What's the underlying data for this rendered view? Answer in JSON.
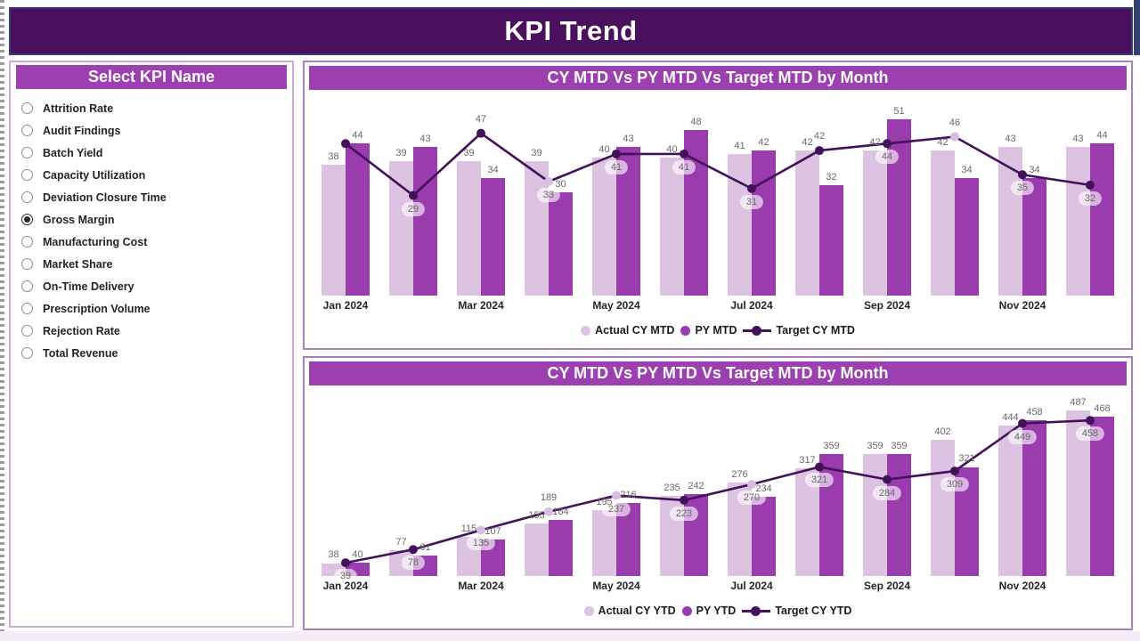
{
  "page": {
    "title": "KPI Trend"
  },
  "slicer": {
    "header": "Select KPI Name",
    "items": [
      {
        "label": "Attrition Rate",
        "selected": false
      },
      {
        "label": "Audit Findings",
        "selected": false
      },
      {
        "label": "Batch Yield",
        "selected": false
      },
      {
        "label": "Capacity Utilization",
        "selected": false
      },
      {
        "label": "Deviation Closure Time",
        "selected": false
      },
      {
        "label": "Gross Margin",
        "selected": true
      },
      {
        "label": "Manufacturing Cost",
        "selected": false
      },
      {
        "label": "Market Share",
        "selected": false
      },
      {
        "label": "On-Time Delivery",
        "selected": false
      },
      {
        "label": "Prescription Volume",
        "selected": false
      },
      {
        "label": "Rejection Rate",
        "selected": false
      },
      {
        "label": "Total Revenue",
        "selected": false
      }
    ]
  },
  "colors": {
    "header_bg": "#4A105E",
    "band_bg": "#9C3FB0",
    "bar_light": "#DCC3E1",
    "bar_dark": "#9A3BAE",
    "line": "#43105A",
    "marker_light": "#D9BCE2",
    "data_label": "#6B6669",
    "panel_border": "#A87EBC",
    "accent_navy": "#36406E"
  },
  "chart_data": [
    {
      "type": "bar+line",
      "title": "CY MTD Vs PY MTD Vs Target MTD by Month",
      "categories": [
        "Jan 2024",
        "Feb 2024",
        "Mar 2024",
        "Apr 2024",
        "May 2024",
        "Jun 2024",
        "Jul 2024",
        "Aug 2024",
        "Sep 2024",
        "Oct 2024",
        "Nov 2024",
        "Dec 2024"
      ],
      "x_ticks_shown": [
        "Jan 2024",
        "Mar 2024",
        "May 2024",
        "Jul 2024",
        "Sep 2024",
        "Nov 2024"
      ],
      "xlabel": "",
      "ylabel": "",
      "ylim": [
        0,
        58
      ],
      "grid": false,
      "legend_position": "bottom",
      "series": [
        {
          "name": "Actual CY MTD",
          "type": "bar",
          "color": "#DCC3E1",
          "values": [
            38,
            39,
            39,
            39,
            40,
            40,
            41,
            42,
            42,
            42,
            43,
            43
          ]
        },
        {
          "name": "PY MTD",
          "type": "bar",
          "color": "#9A3BAE",
          "values": [
            44,
            43,
            34,
            30,
            43,
            48,
            42,
            32,
            51,
            34,
            34,
            44
          ]
        },
        {
          "name": "Target CY MTD",
          "type": "line",
          "color": "#43105A",
          "values": [
            44,
            29,
            47,
            33,
            41,
            41,
            31,
            42,
            44,
            46,
            35,
            32
          ]
        }
      ],
      "target_label_below": [
        false,
        true,
        false,
        true,
        true,
        true,
        true,
        false,
        true,
        false,
        true,
        true
      ],
      "target_label_hidden": [
        true,
        false,
        false,
        false,
        false,
        false,
        false,
        false,
        false,
        false,
        false,
        false
      ],
      "target_marker_light": [
        false,
        false,
        false,
        true,
        false,
        false,
        false,
        false,
        false,
        true,
        false,
        false
      ]
    },
    {
      "type": "bar+line",
      "title": "CY MTD Vs PY MTD Vs Target MTD by Month",
      "categories": [
        "Jan 2024",
        "Feb 2024",
        "Mar 2024",
        "Apr 2024",
        "May 2024",
        "Jun 2024",
        "Jul 2024",
        "Aug 2024",
        "Sep 2024",
        "Oct 2024",
        "Nov 2024",
        "Dec 2024"
      ],
      "x_ticks_shown": [
        "Jan 2024",
        "Mar 2024",
        "May 2024",
        "Jul 2024",
        "Sep 2024",
        "Nov 2024"
      ],
      "xlabel": "",
      "ylabel": "",
      "ylim": [
        0,
        545
      ],
      "grid": false,
      "legend_position": "bottom",
      "series": [
        {
          "name": "Actual CY YTD",
          "type": "bar",
          "color": "#DCC3E1",
          "values": [
            38,
            77,
            115,
            155,
            195,
            235,
            276,
            317,
            359,
            402,
            444,
            487
          ]
        },
        {
          "name": "PY YTD",
          "type": "bar",
          "color": "#9A3BAE",
          "values": [
            40,
            61,
            107,
            164,
            216,
            242,
            234,
            359,
            359,
            321,
            458,
            468
          ]
        },
        {
          "name": "Target CY YTD",
          "type": "line",
          "color": "#43105A",
          "values": [
            39,
            78,
            135,
            189,
            237,
            223,
            270,
            321,
            284,
            309,
            449,
            458
          ]
        }
      ],
      "target_label_below": [
        true,
        true,
        true,
        false,
        true,
        true,
        true,
        true,
        true,
        true,
        true,
        true
      ],
      "target_label_hidden": [
        false,
        false,
        false,
        false,
        false,
        false,
        false,
        false,
        false,
        false,
        false,
        false
      ],
      "target_marker_light": [
        false,
        false,
        true,
        true,
        true,
        false,
        true,
        false,
        false,
        false,
        false,
        false
      ]
    }
  ]
}
